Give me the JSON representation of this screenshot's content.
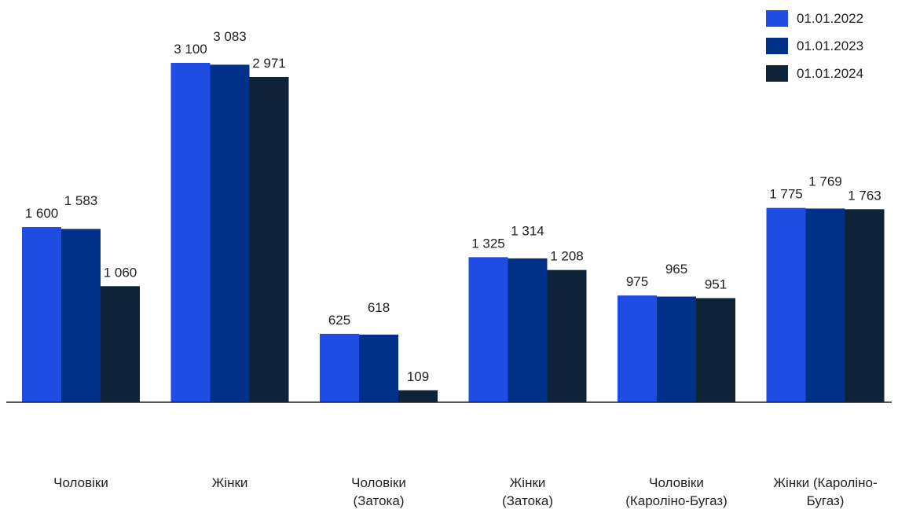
{
  "chart_data": {
    "type": "bar",
    "categories": [
      [
        "Чоловіки"
      ],
      [
        "Жінки"
      ],
      [
        "Чоловіки",
        "(Затока)"
      ],
      [
        "Жінки",
        "(Затока)"
      ],
      [
        "Чоловіки",
        "(Кароліно-Бугаз)"
      ],
      [
        "Жінки (Кароліно-",
        "Бугаз)"
      ]
    ],
    "series": [
      {
        "name": "01.01.2022",
        "color": "#1f4ce3",
        "values": [
          1600,
          3100,
          625,
          1325,
          975,
          1775
        ]
      },
      {
        "name": "01.01.2023",
        "color": "#003087",
        "values": [
          1583,
          3083,
          618,
          1314,
          965,
          1769
        ]
      },
      {
        "name": "01.01.2024",
        "color": "#0e2238",
        "values": [
          1060,
          2971,
          109,
          1208,
          951,
          1763
        ]
      }
    ],
    "value_labels": [
      [
        "1 600",
        "3 100",
        "625",
        "1 325",
        "975",
        "1 775"
      ],
      [
        "1 583",
        "3 083",
        "618",
        "1 314",
        "965",
        "1 769"
      ],
      [
        "1 060",
        "2 971",
        "109",
        "1 208",
        "951",
        "1 763"
      ]
    ],
    "ylim": [
      0,
      3200
    ],
    "legend_position": "top-right",
    "grid": false
  }
}
